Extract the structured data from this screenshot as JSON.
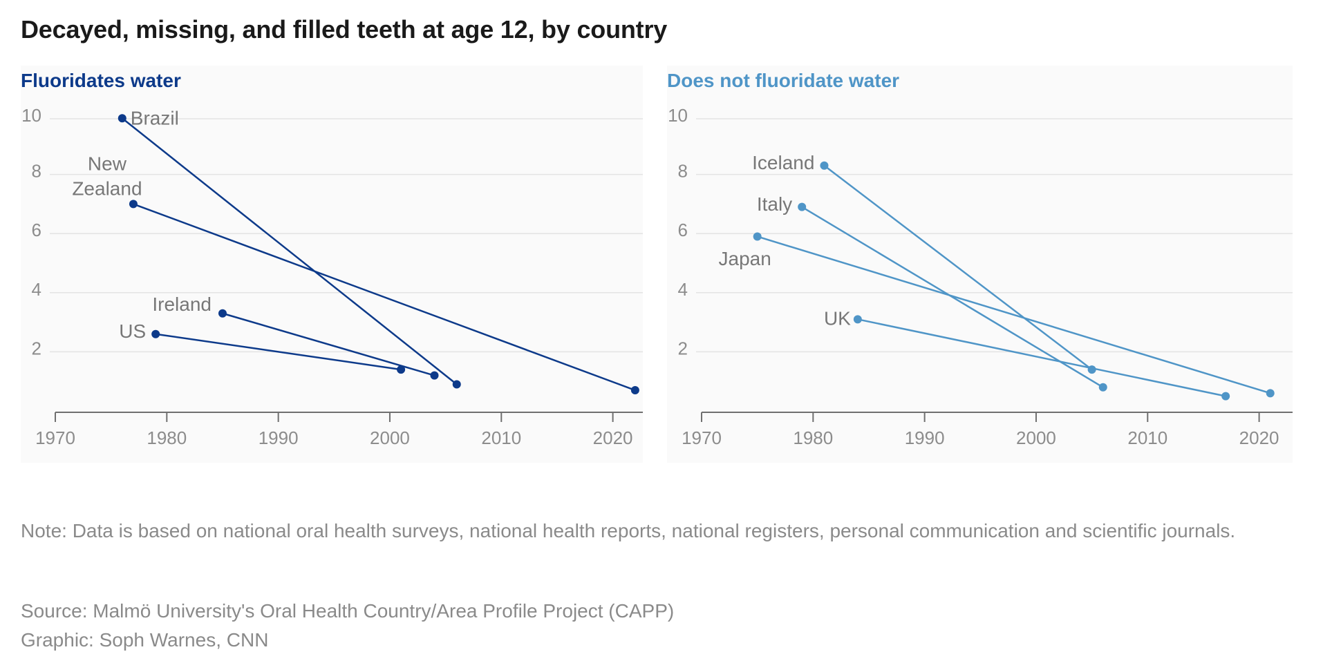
{
  "title": "Decayed, missing, and filled teeth at age 12, by country",
  "note": "Note: Data is based on national oral health surveys, national health reports, national registers, personal communication and scientific journals.",
  "source": "Source: Malmö University's Oral Health Country/Area Profile Project (CAPP)",
  "graphic": "Graphic: Soph Warnes, CNN",
  "chart_data": [
    {
      "type": "line",
      "title": "Fluoridates water",
      "color": "#0d3a8a",
      "xlabel": "",
      "ylabel": "",
      "xlim": [
        1970,
        2023
      ],
      "ylim": [
        0,
        10
      ],
      "xticks": [
        1970,
        1980,
        1990,
        2000,
        2010,
        2020
      ],
      "yticks": [
        2,
        4,
        6,
        8,
        10
      ],
      "grid": true,
      "series": [
        {
          "name": "Brazil",
          "points": [
            [
              1976,
              9.9
            ],
            [
              2006,
              0.9
            ]
          ]
        },
        {
          "name": "New Zealand",
          "points": [
            [
              1977,
              7.0
            ],
            [
              2022,
              0.7
            ]
          ]
        },
        {
          "name": "Ireland",
          "points": [
            [
              1985,
              3.3
            ],
            [
              2004,
              1.2
            ]
          ]
        },
        {
          "name": "US",
          "points": [
            [
              1979,
              2.6
            ],
            [
              2001,
              1.4
            ]
          ]
        }
      ]
    },
    {
      "type": "line",
      "title": "Does not fluoridate water",
      "color": "#4f95c7",
      "xlabel": "",
      "ylabel": "",
      "xlim": [
        1970,
        2023
      ],
      "ylim": [
        0,
        10
      ],
      "xticks": [
        1970,
        1980,
        1990,
        2000,
        2010,
        2020
      ],
      "yticks": [
        2,
        4,
        6,
        8,
        10
      ],
      "grid": true,
      "series": [
        {
          "name": "Iceland",
          "points": [
            [
              1981,
              8.3
            ],
            [
              2005,
              1.4
            ]
          ]
        },
        {
          "name": "Italy",
          "points": [
            [
              1979,
              6.9
            ],
            [
              2006,
              0.8
            ]
          ]
        },
        {
          "name": "Japan",
          "points": [
            [
              1975,
              5.9
            ],
            [
              2021,
              0.6
            ]
          ]
        },
        {
          "name": "UK",
          "points": [
            [
              1984,
              3.1
            ],
            [
              2017,
              0.5
            ]
          ]
        }
      ]
    }
  ]
}
